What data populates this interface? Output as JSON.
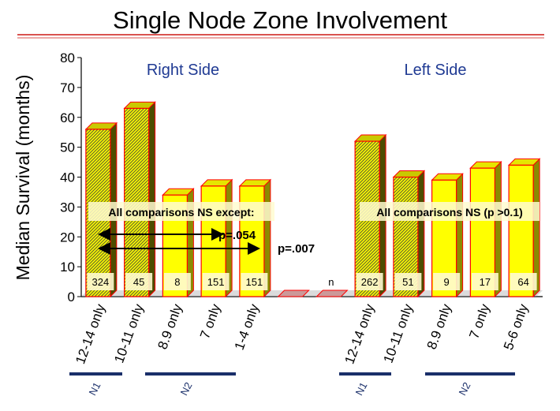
{
  "title": "Single Node Zone Involvement",
  "chart_data": {
    "type": "bar",
    "ylabel": "Median Survival (months)",
    "ylim": [
      0,
      80
    ],
    "yticks": [
      0,
      10,
      20,
      30,
      40,
      50,
      60,
      70,
      80
    ],
    "categories": [
      "12-14 only",
      "10-11 only",
      "8.9 only",
      "7 only",
      "1-4 only",
      "",
      "",
      "12-14 only",
      "10-11 only",
      "8.9 only",
      "7 only",
      "5-6  only"
    ],
    "values": [
      56,
      63,
      34,
      37,
      37,
      0,
      0,
      52,
      40,
      39,
      43,
      44
    ],
    "hatched": [
      true,
      true,
      false,
      false,
      false,
      false,
      false,
      true,
      true,
      false,
      false,
      false
    ],
    "counts": [
      "324",
      "45",
      "8",
      "151",
      "151",
      "",
      "n",
      "262",
      "51",
      "9",
      "17",
      "64"
    ],
    "group_labels": [
      "Right Side",
      "Left Side"
    ],
    "annotations": {
      "right_box": "All comparisons NS except:",
      "left_box": "All comparisons NS (p >0.1)",
      "p1": "p=.054",
      "p2": "p=.007"
    },
    "brackets": [
      "N1",
      "N2",
      "N1",
      "N2"
    ],
    "colors": {
      "bar_front": "#ffff00",
      "bar_side": "#8b8b00",
      "bar_edge": "#ff0000",
      "hatch": "#6b6b2a",
      "group_label": "#1f3a93",
      "bracket": "#1a2f6a",
      "title_rule": "#d9534f"
    }
  }
}
